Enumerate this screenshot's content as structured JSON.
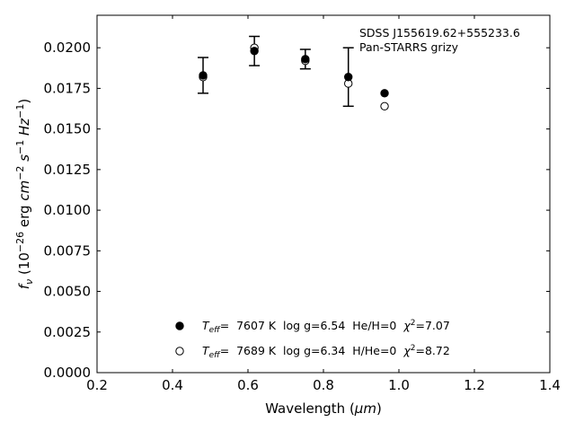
{
  "chart_data": {
    "type": "scatter",
    "title": "",
    "xlabel_main": "Wavelength (",
    "xlabel_unit": "μm",
    "xlabel_close": ")",
    "ylabel_f": "f",
    "ylabel_nu": "ν",
    "ylabel_open": " (10",
    "ylabel_exp1": "−26",
    "ylabel_erg": " erg ",
    "ylabel_cm": "cm",
    "ylabel_exp2": "−2",
    "ylabel_s": " s",
    "ylabel_exp3": "−1",
    "ylabel_hz": " Hz",
    "ylabel_exp4": "−1",
    "ylabel_close": ")",
    "xlim": [
      0.2,
      1.4
    ],
    "ylim": [
      0.0,
      0.022
    ],
    "x_ticks": [
      "0.2",
      "0.4",
      "0.6",
      "0.8",
      "1.0",
      "1.2",
      "1.4"
    ],
    "y_ticks": [
      "0.0000",
      "0.0025",
      "0.0050",
      "0.0075",
      "0.0100",
      "0.0125",
      "0.0150",
      "0.0175",
      "0.0200"
    ],
    "annotation": {
      "line1": "SDSS J155619.62+555233.6",
      "line2": "Pan-STARRS grizy"
    },
    "observed": {
      "x": [
        0.481,
        0.617,
        0.752,
        0.866
      ],
      "y": [
        0.0183,
        0.0198,
        0.0193,
        0.0182
      ],
      "err": [
        0.0011,
        0.0009,
        0.0006,
        0.0018
      ]
    },
    "series": [
      {
        "marker": "filled",
        "x": [
          0.481,
          0.617,
          0.752,
          0.866,
          0.962
        ],
        "y": [
          0.0183,
          0.0198,
          0.0193,
          0.0182,
          0.0172
        ],
        "legend": {
          "teff": "T",
          "teff_sub": "eff",
          "text1": "=  7607 K  log g=6.54  He/H=0  ",
          "chi": "χ",
          "chi_sup": "2",
          "text2": "=7.07"
        }
      },
      {
        "marker": "open",
        "x": [
          0.481,
          0.617,
          0.752,
          0.866,
          0.962
        ],
        "y": [
          0.0182,
          0.02,
          0.0192,
          0.0178,
          0.0164
        ],
        "legend": {
          "teff": "T",
          "teff_sub": "eff",
          "text1": "=  7689 K  log g=6.34  H/He=0  ",
          "chi": "χ",
          "chi_sup": "2",
          "text2": "=8.72"
        }
      }
    ],
    "legend_placement": "lower-center",
    "grid": false
  }
}
